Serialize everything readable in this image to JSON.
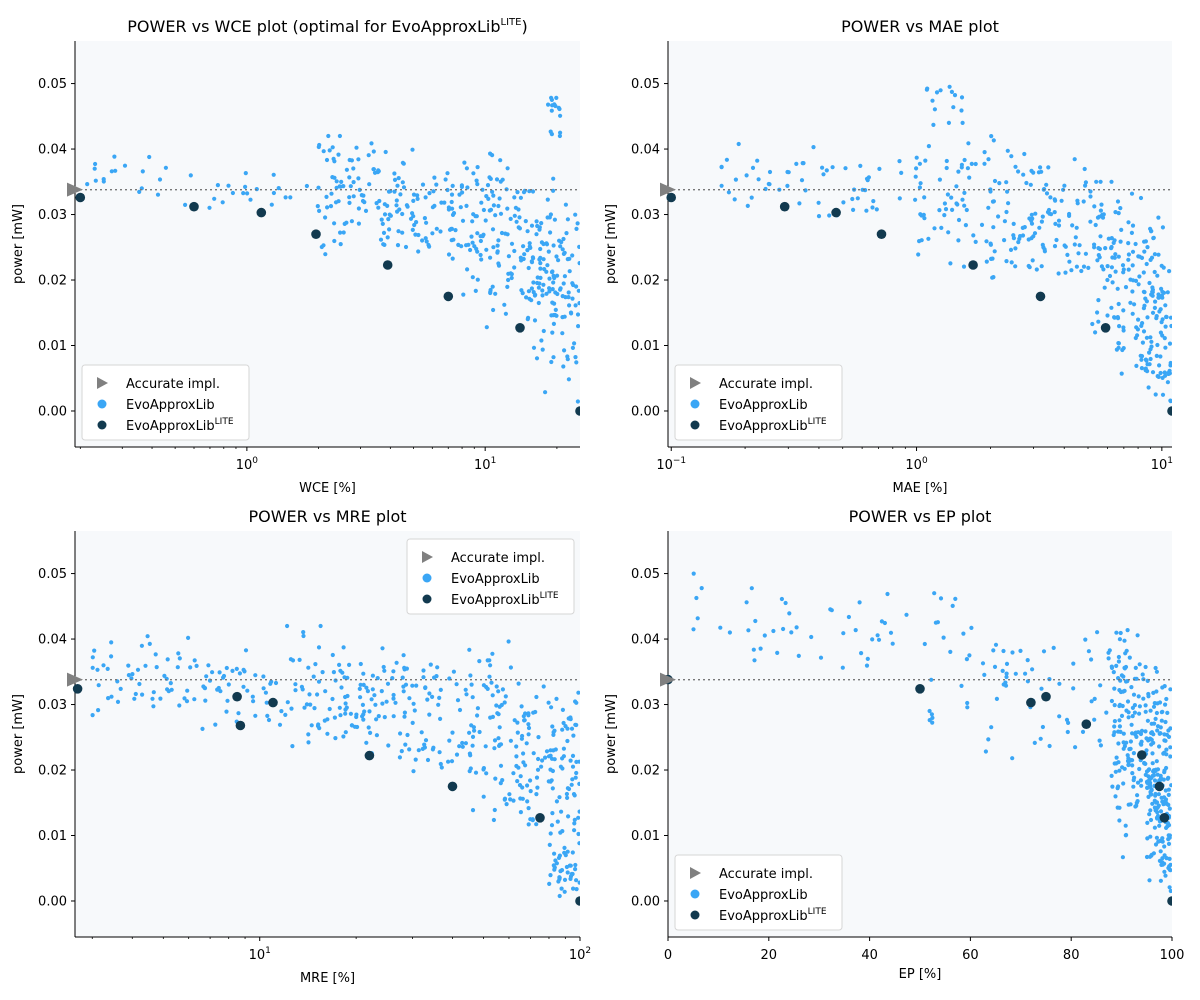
{
  "colors": {
    "evo": "#3aa6f5",
    "lite": "#123a4f",
    "accurate": "#808080",
    "plot_bg": "#f7f9fb",
    "ref_line": "#777777"
  },
  "chart_data": [
    {
      "type": "scatter",
      "title": "POWER vs WCE plot (optimal for EvoApproxLib",
      "title_sup": "LITE",
      "title_tail": ")",
      "xlabel": "WCE [%]",
      "ylabel": "power [mW]",
      "xscale": "log",
      "xlim": [
        0.19,
        25
      ],
      "ylim": [
        -0.0055,
        0.0565
      ],
      "xticks": [
        {
          "v": 1,
          "label": "10",
          "sup": "0"
        },
        {
          "v": 10,
          "label": "10",
          "sup": "1"
        }
      ],
      "yticks": [
        0,
        0.01,
        0.02,
        0.03,
        0.04,
        0.05
      ],
      "ytick_labels": [
        "0.00",
        "0.01",
        "0.02",
        "0.03",
        "0.04",
        "0.05"
      ],
      "legend_position": "lower-left",
      "accurate_power": 0.0338,
      "lite_points": [
        [
          0.2,
          0.0326
        ],
        [
          0.6,
          0.0312
        ],
        [
          1.15,
          0.0303
        ],
        [
          1.95,
          0.027
        ],
        [
          3.9,
          0.0223
        ],
        [
          7.0,
          0.0175
        ],
        [
          14.0,
          0.0127
        ],
        [
          25.0,
          0.0
        ]
      ],
      "cloud_regions": [
        {
          "n": 40,
          "xr": [
            0.2,
            2.0
          ],
          "yr": [
            0.029,
            0.04
          ]
        },
        {
          "n": 170,
          "xr": [
            2.0,
            8.0
          ],
          "yr": [
            0.021,
            0.042
          ]
        },
        {
          "n": 190,
          "xr": [
            8.0,
            25.0
          ],
          "yr": [
            0.011,
            0.041
          ]
        },
        {
          "n": 70,
          "xr": [
            15.0,
            25.0
          ],
          "yr": [
            0.0,
            0.03
          ]
        },
        {
          "n": 15,
          "xr": [
            18.0,
            21.0
          ],
          "yr": [
            0.04,
            0.051
          ]
        }
      ],
      "legend": {
        "accurate": "Accurate impl.",
        "evo": "EvoApproxLib",
        "lite": "EvoApproxLib",
        "lite_sup": "LITE"
      }
    },
    {
      "type": "scatter",
      "title": "POWER vs MAE plot",
      "xlabel": "MAE [%]",
      "ylabel": "power [mW]",
      "xscale": "log",
      "xlim": [
        0.097,
        11
      ],
      "ylim": [
        -0.0055,
        0.0565
      ],
      "xticks": [
        {
          "v": 0.1,
          "label": "10",
          "sup": "−1"
        },
        {
          "v": 1,
          "label": "10",
          "sup": "0"
        },
        {
          "v": 10,
          "label": "10",
          "sup": "1"
        }
      ],
      "yticks": [
        0,
        0.01,
        0.02,
        0.03,
        0.04,
        0.05
      ],
      "ytick_labels": [
        "0.00",
        "0.01",
        "0.02",
        "0.03",
        "0.04",
        "0.05"
      ],
      "legend_position": "lower-left",
      "accurate_power": 0.0338,
      "lite_points": [
        [
          0.1,
          0.0326
        ],
        [
          0.29,
          0.0312
        ],
        [
          0.47,
          0.0303
        ],
        [
          0.72,
          0.027
        ],
        [
          1.7,
          0.0223
        ],
        [
          3.2,
          0.0175
        ],
        [
          5.9,
          0.0127
        ],
        [
          11.0,
          0.0
        ]
      ],
      "cloud_regions": [
        {
          "n": 60,
          "xr": [
            0.15,
            1.0
          ],
          "yr": [
            0.027,
            0.041
          ]
        },
        {
          "n": 180,
          "xr": [
            1.0,
            5.0
          ],
          "yr": [
            0.017,
            0.044
          ]
        },
        {
          "n": 180,
          "xr": [
            5.0,
            11.0
          ],
          "yr": [
            0.005,
            0.035
          ]
        },
        {
          "n": 40,
          "xr": [
            8.0,
            11.0
          ],
          "yr": [
            0.0,
            0.013
          ]
        },
        {
          "n": 12,
          "xr": [
            1.1,
            1.6
          ],
          "yr": [
            0.045,
            0.051
          ]
        }
      ],
      "legend": {
        "accurate": "Accurate impl.",
        "evo": "EvoApproxLib",
        "lite": "EvoApproxLib",
        "lite_sup": "LITE"
      }
    },
    {
      "type": "scatter",
      "title": "POWER vs MRE plot",
      "xlabel": "MRE [%]",
      "ylabel": "power [mW]",
      "xscale": "log",
      "xlim": [
        2.65,
        100
      ],
      "ylim": [
        -0.0055,
        0.0565
      ],
      "xticks": [
        {
          "v": 10,
          "label": "10",
          "sup": "1"
        },
        {
          "v": 100,
          "label": "10",
          "sup": "2"
        }
      ],
      "yticks": [
        0,
        0.01,
        0.02,
        0.03,
        0.04,
        0.05
      ],
      "ytick_labels": [
        "0.00",
        "0.01",
        "0.02",
        "0.03",
        "0.04",
        "0.05"
      ],
      "legend_position": "upper-right",
      "accurate_power": 0.0338,
      "lite_points": [
        [
          2.7,
          0.0324
        ],
        [
          8.5,
          0.0312
        ],
        [
          8.7,
          0.0268
        ],
        [
          11.0,
          0.0303
        ],
        [
          22.0,
          0.0222
        ],
        [
          40.0,
          0.0175
        ],
        [
          75.0,
          0.0127
        ],
        [
          100.0,
          0.0
        ]
      ],
      "cloud_regions": [
        {
          "n": 100,
          "xr": [
            3.0,
            12.0
          ],
          "yr": [
            0.025,
            0.041
          ]
        },
        {
          "n": 180,
          "xr": [
            12.0,
            45.0
          ],
          "yr": [
            0.017,
            0.042
          ]
        },
        {
          "n": 200,
          "xr": [
            45.0,
            100.0
          ],
          "yr": [
            0.006,
            0.04
          ]
        },
        {
          "n": 40,
          "xr": [
            80.0,
            100.0
          ],
          "yr": [
            0.0,
            0.01
          ]
        }
      ],
      "legend": {
        "accurate": "Accurate impl.",
        "evo": "EvoApproxLib",
        "lite": "EvoApproxLib",
        "lite_sup": "LITE"
      }
    },
    {
      "type": "scatter",
      "title": "POWER vs EP plot",
      "xlabel": "EP [%]",
      "ylabel": "power [mW]",
      "xscale": "linear",
      "xlim": [
        0,
        100
      ],
      "ylim": [
        -0.0055,
        0.0565
      ],
      "xticks": [
        {
          "v": 0,
          "label": "0"
        },
        {
          "v": 20,
          "label": "20"
        },
        {
          "v": 40,
          "label": "40"
        },
        {
          "v": 60,
          "label": "60"
        },
        {
          "v": 80,
          "label": "80"
        },
        {
          "v": 100,
          "label": "100"
        }
      ],
      "yticks": [
        0,
        0.01,
        0.02,
        0.03,
        0.04,
        0.05
      ],
      "ytick_labels": [
        "0.00",
        "0.01",
        "0.02",
        "0.03",
        "0.04",
        "0.05"
      ],
      "legend_position": "lower-left",
      "accurate_power": 0.0338,
      "lite_points": [
        [
          0.0,
          0.0338
        ],
        [
          50.0,
          0.0324
        ],
        [
          72.0,
          0.0303
        ],
        [
          75.0,
          0.0312
        ],
        [
          83.0,
          0.027
        ],
        [
          94.0,
          0.0223
        ],
        [
          97.5,
          0.0175
        ],
        [
          98.5,
          0.0127
        ],
        [
          100.0,
          0.0
        ]
      ],
      "cloud_regions": [
        {
          "n": 45,
          "xr": [
            3.0,
            50.0
          ],
          "yr": [
            0.032,
            0.05
          ]
        },
        {
          "n": 80,
          "xr": [
            50.0,
            88.0
          ],
          "yr": [
            0.02,
            0.047
          ]
        },
        {
          "n": 260,
          "xr": [
            88.0,
            100.0
          ],
          "yr": [
            0.005,
            0.042
          ]
        },
        {
          "n": 80,
          "xr": [
            95.0,
            100.0
          ],
          "yr": [
            0.0,
            0.02
          ]
        }
      ],
      "legend": {
        "accurate": "Accurate impl.",
        "evo": "EvoApproxLib",
        "lite": "EvoApproxLib",
        "lite_sup": "LITE"
      }
    }
  ]
}
